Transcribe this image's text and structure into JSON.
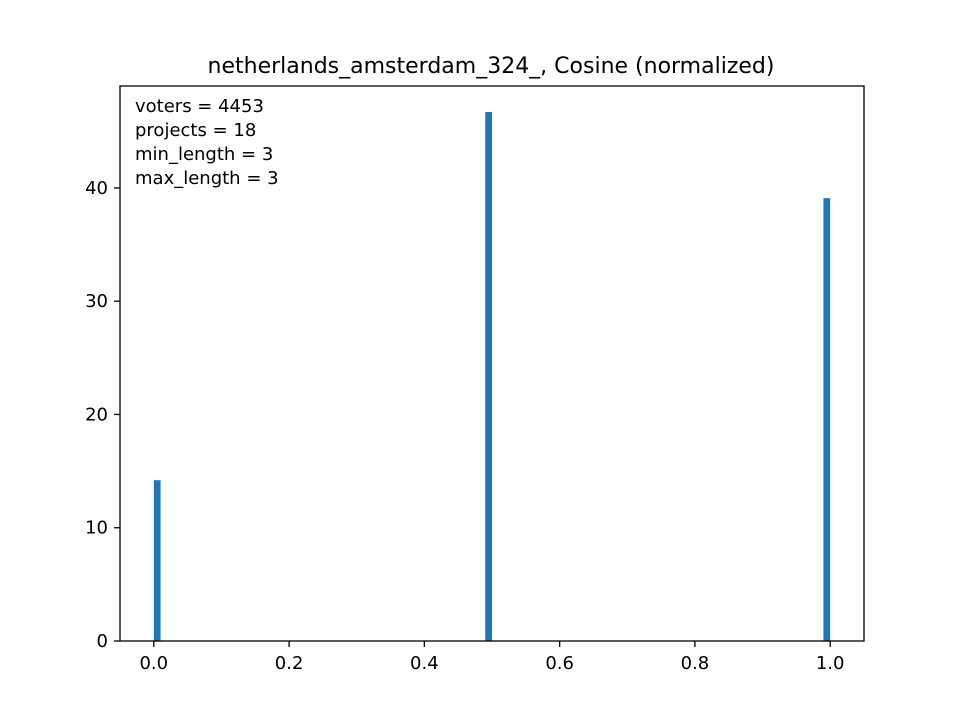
{
  "chart_data": {
    "type": "bar",
    "title": "netherlands_amsterdam_324_, Cosine (normalized)",
    "xlabel": "",
    "ylabel": "",
    "xlim": [
      -0.05,
      1.05
    ],
    "ylim": [
      0,
      49
    ],
    "xticks": [
      0.0,
      0.2,
      0.4,
      0.6,
      0.8,
      1.0
    ],
    "xtick_labels": [
      "0.0",
      "0.2",
      "0.4",
      "0.6",
      "0.8",
      "1.0"
    ],
    "yticks": [
      0,
      10,
      20,
      30,
      40
    ],
    "ytick_labels": [
      "0",
      "10",
      "20",
      "30",
      "40"
    ],
    "bin_width": 0.01,
    "bars": [
      {
        "x": 0.005,
        "value": 14.2
      },
      {
        "x": 0.495,
        "value": 46.7
      },
      {
        "x": 0.995,
        "value": 39.1
      }
    ],
    "bar_color": "#1f77b4",
    "grid": false,
    "annotations": [
      "voters = 4453",
      "projects = 18",
      "min_length = 3",
      "max_length = 3"
    ]
  }
}
